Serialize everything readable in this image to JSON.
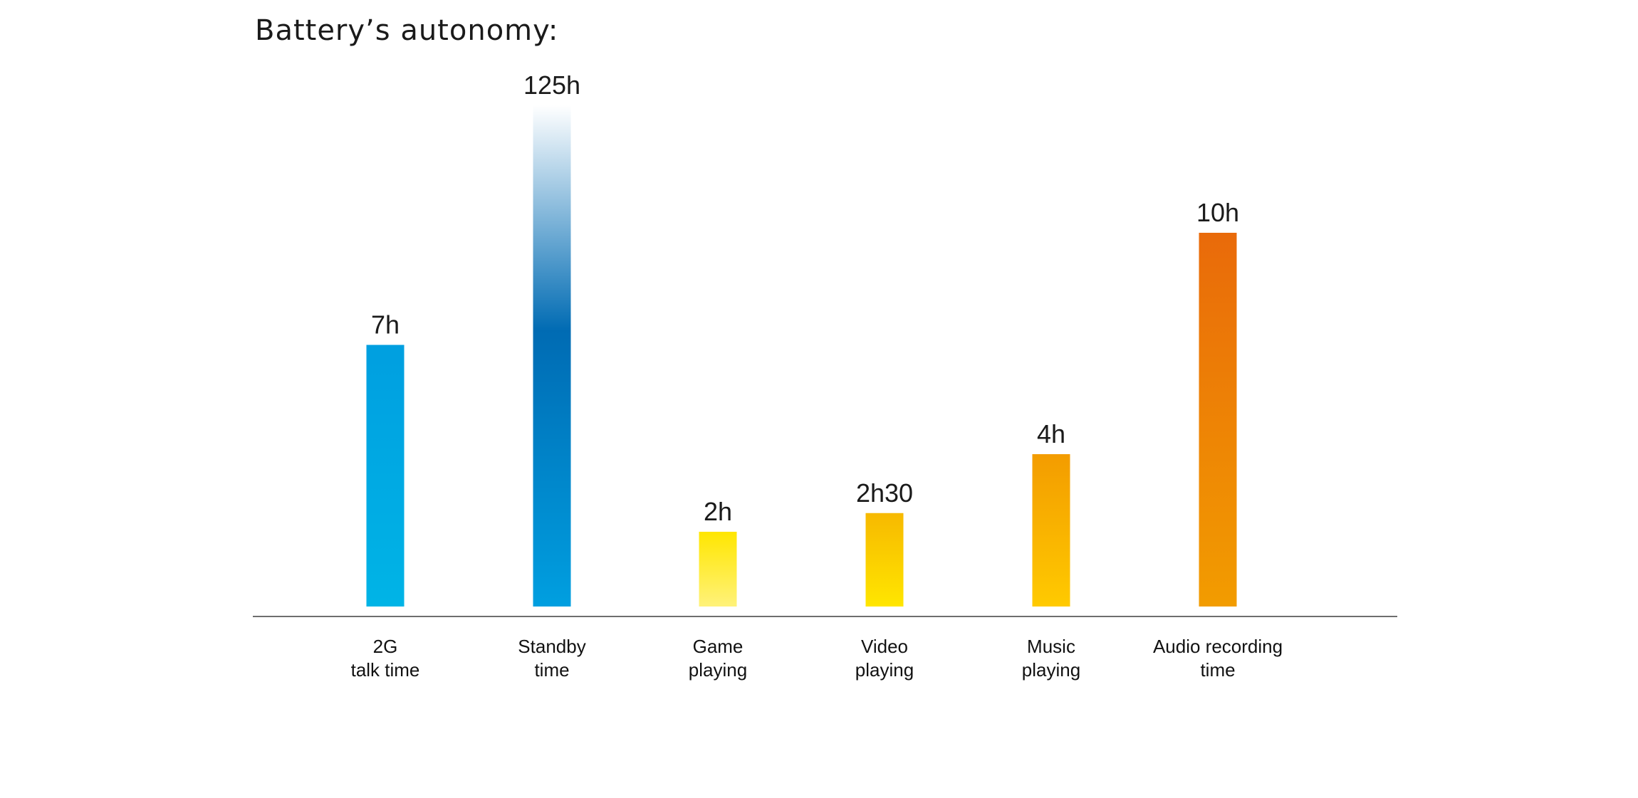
{
  "chart_data": {
    "type": "bar",
    "title": "Battery’s autonomy:",
    "categories": [
      [
        "2G",
        "talk time"
      ],
      [
        "Standby",
        "time"
      ],
      [
        "Game",
        "playing"
      ],
      [
        "Video",
        "playing"
      ],
      [
        "Music",
        "playing"
      ],
      [
        "Audio recording",
        "time"
      ]
    ],
    "values": [
      7,
      125,
      2,
      2.5,
      4,
      10
    ],
    "data_labels": [
      "7h",
      "125h",
      "2h",
      "2h30",
      "4h",
      "10h"
    ],
    "bar_colors": [
      [
        "#00b4e6",
        "#009fe0"
      ],
      [
        "#009fe0",
        "#006bb3",
        "#ffffff"
      ],
      [
        "#fff27a",
        "#ffe600"
      ],
      [
        "#ffe600",
        "#f7b900"
      ],
      [
        "#ffca00",
        "#f39c00"
      ],
      [
        "#f29c00",
        "#e96a0a"
      ]
    ],
    "axis_color": "#6e6e6e",
    "grid": false,
    "legend": "none"
  }
}
